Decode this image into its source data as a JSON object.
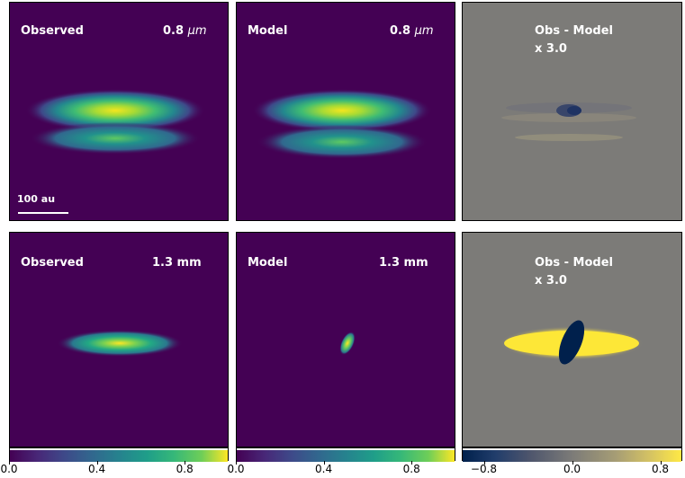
{
  "panels": {
    "r1c1": {
      "title": "Observed",
      "wavelength_value": "0.8",
      "wavelength_unit": "μm",
      "scalebar_label": "100 au"
    },
    "r1c2": {
      "title": "Model",
      "wavelength_value": "0.8",
      "wavelength_unit": "μm"
    },
    "r1c3": {
      "title": "Obs - Model",
      "factor": "x 3.0"
    },
    "r2c1": {
      "title": "Observed",
      "wavelength": "1.3 mm"
    },
    "r2c2": {
      "title": "Model",
      "wavelength": "1.3 mm"
    },
    "r2c3": {
      "title": "Obs - Model",
      "factor": "x 3.0"
    }
  },
  "colors": {
    "viridis_low": "#440154",
    "viridis_high": "#fde725",
    "cividis_low": "#00204c",
    "cividis_mid": "#7c7b78",
    "cividis_high": "#ffe945"
  },
  "chart_data": {
    "type": "heatmap",
    "colorbars": [
      {
        "colormap": "viridis",
        "range": [
          0.0,
          1.0
        ],
        "ticks": [
          "0.0",
          "0.4",
          "0.8"
        ],
        "tick_values": [
          0.0,
          0.4,
          0.8
        ]
      },
      {
        "colormap": "viridis",
        "range": [
          0.0,
          1.0
        ],
        "ticks": [
          "0.0",
          "0.4",
          "0.8"
        ],
        "tick_values": [
          0.0,
          0.4,
          0.8
        ]
      },
      {
        "colormap": "cividis",
        "range": [
          -1.0,
          1.0
        ],
        "ticks": [
          "−0.8",
          "0.0",
          "0.8"
        ],
        "tick_values": [
          -0.8,
          0.0,
          0.8
        ]
      }
    ]
  }
}
